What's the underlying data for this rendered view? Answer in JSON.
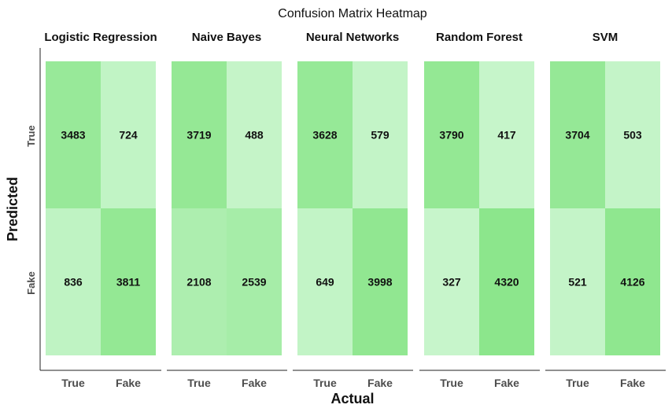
{
  "chart_data": {
    "type": "heatmap",
    "title": "Confusion Matrix Heatmap",
    "xlabel": "Actual",
    "ylabel": "Predicted",
    "x_categories": [
      "True",
      "Fake"
    ],
    "y_categories": [
      "True",
      "Fake"
    ],
    "color_scale": {
      "low": "#c7f5cb",
      "high": "#8ce68c"
    },
    "panels": [
      {
        "name": "Logistic Regression",
        "matrix": [
          [
            3483,
            724
          ],
          [
            836,
            3811
          ]
        ]
      },
      {
        "name": "Naive Bayes",
        "matrix": [
          [
            3719,
            488
          ],
          [
            2108,
            2539
          ]
        ]
      },
      {
        "name": "Neural Networks",
        "matrix": [
          [
            3628,
            579
          ],
          [
            649,
            3998
          ]
        ]
      },
      {
        "name": "Random Forest",
        "matrix": [
          [
            3790,
            417
          ],
          [
            327,
            4320
          ]
        ]
      },
      {
        "name": "SVM",
        "matrix": [
          [
            3704,
            503
          ],
          [
            521,
            4126
          ]
        ]
      }
    ]
  }
}
